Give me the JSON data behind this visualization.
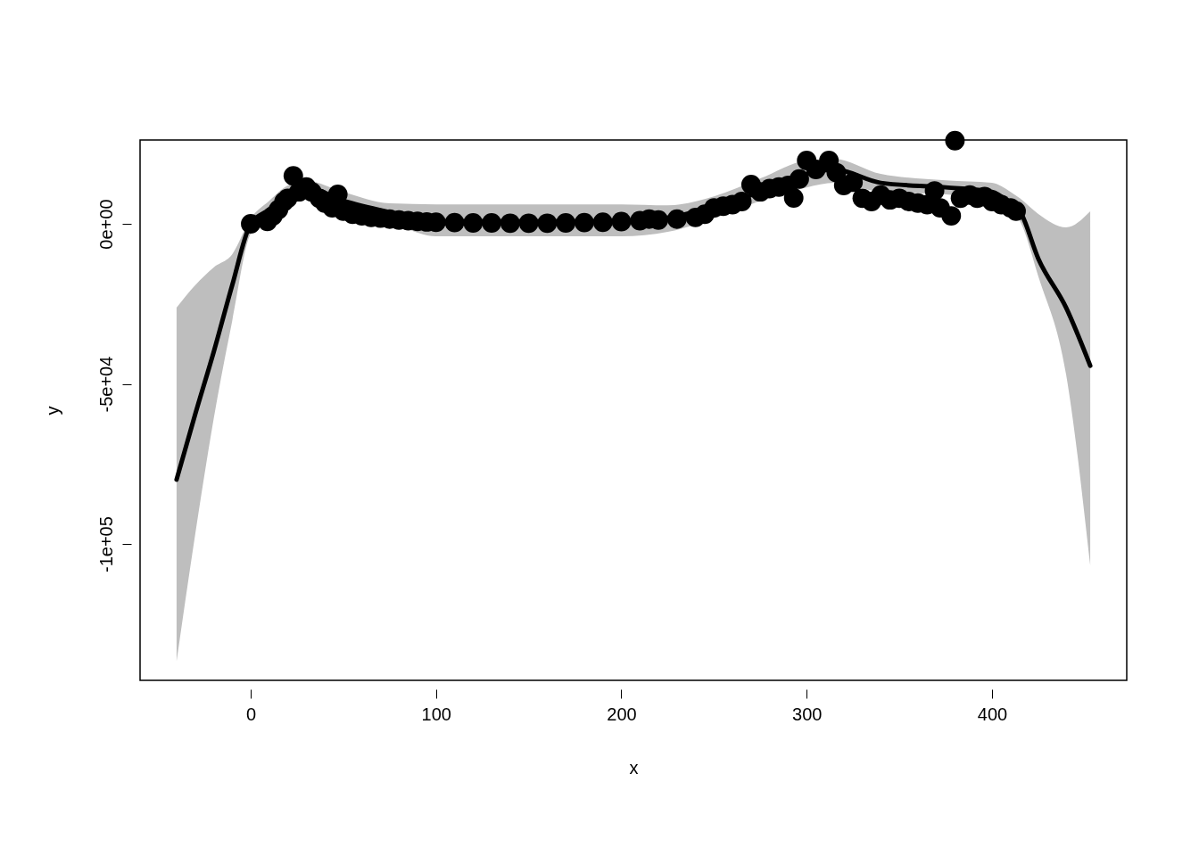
{
  "chart_data": {
    "type": "line",
    "xlabel": "x",
    "ylabel": "y",
    "xlim": [
      -59.7,
      472.7
    ],
    "ylim": [
      -142600,
      26200
    ],
    "xticks": [
      0,
      100,
      200,
      300,
      400
    ],
    "yticks": [
      {
        "value": -100000,
        "label": "-1e+05"
      },
      {
        "value": -50000,
        "label": "-5e+04"
      },
      {
        "value": 0,
        "label": "0e+00"
      }
    ],
    "grid": false,
    "series": [
      {
        "color": "#000000",
        "line_style": "solid",
        "x": [
          -40,
          -30,
          -20,
          -10,
          0,
          10,
          20,
          30,
          50,
          75,
          100,
          150,
          200,
          225,
          250,
          275,
          300,
          315,
          340,
          375,
          400,
          410,
          415,
          425,
          440,
          453
        ],
        "values": [
          -79900,
          -59600,
          -40100,
          -19200,
          0,
          4500,
          10000,
          11400,
          7200,
          3600,
          800,
          800,
          800,
          1900,
          5300,
          10000,
          15600,
          17000,
          12800,
          11400,
          10000,
          6400,
          4000,
          -10900,
          -26200,
          -44300
        ],
        "lower": [
          -136700,
          -97200,
          -61000,
          -30400,
          -3100,
          1700,
          7200,
          8600,
          3100,
          300,
          -3900,
          -3900,
          -3900,
          -2500,
          1700,
          7200,
          11400,
          12800,
          10000,
          9200,
          7200,
          4500,
          1000,
          -16400,
          -47100,
          -106700
        ],
        "upper": [
          -26200,
          -19200,
          -13600,
          -9500,
          1700,
          7200,
          12000,
          13400,
          10000,
          6400,
          6100,
          6100,
          6100,
          5800,
          8600,
          14200,
          19800,
          20300,
          15600,
          13600,
          12800,
          10000,
          8000,
          3100,
          -1100,
          3900
        ]
      },
      {
        "type": "scatter",
        "color": "#000000",
        "marker": "circle",
        "x": [
          0,
          9,
          12,
          15,
          18,
          20,
          23,
          26,
          30,
          33,
          37,
          40,
          44,
          47,
          50,
          55,
          60,
          65,
          70,
          75,
          80,
          85,
          90,
          95,
          100,
          110,
          120,
          130,
          140,
          150,
          160,
          170,
          180,
          190,
          200,
          210,
          215,
          220,
          230,
          240,
          245,
          250,
          255,
          260,
          265,
          270,
          275,
          280,
          285,
          290,
          293,
          296,
          300,
          305,
          312,
          316,
          320,
          325,
          330,
          335,
          340,
          345,
          350,
          355,
          360,
          365,
          369,
          372,
          378,
          380,
          383,
          388,
          392,
          396,
          400,
          405,
          410,
          413
        ],
        "values": [
          0,
          800,
          2500,
          4500,
          7000,
          8000,
          15000,
          10000,
          11500,
          10000,
          8000,
          6500,
          5000,
          9200,
          4000,
          3000,
          2500,
          2000,
          1800,
          1500,
          1200,
          1000,
          800,
          600,
          500,
          400,
          300,
          300,
          200,
          200,
          200,
          300,
          400,
          500,
          700,
          1000,
          1500,
          1200,
          1500,
          2000,
          3000,
          5000,
          5500,
          6000,
          7000,
          12300,
          10000,
          11000,
          11500,
          12000,
          8100,
          14000,
          19800,
          17000,
          19800,
          16000,
          12000,
          13000,
          8000,
          7000,
          9000,
          7500,
          8000,
          7000,
          6500,
          6000,
          10300,
          5000,
          2500,
          26000,
          8000,
          9000,
          8000,
          8500,
          7000,
          6000,
          5000,
          4000
        ]
      }
    ]
  }
}
